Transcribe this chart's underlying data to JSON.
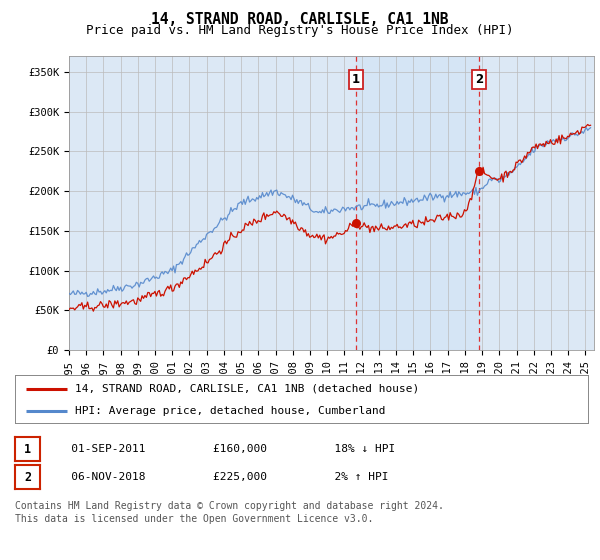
{
  "title": "14, STRAND ROAD, CARLISLE, CA1 1NB",
  "subtitle": "Price paid vs. HM Land Registry's House Price Index (HPI)",
  "ylabel_ticks": [
    "£0",
    "£50K",
    "£100K",
    "£150K",
    "£200K",
    "£250K",
    "£300K",
    "£350K"
  ],
  "ytick_values": [
    0,
    50000,
    100000,
    150000,
    200000,
    250000,
    300000,
    350000
  ],
  "ylim": [
    0,
    370000
  ],
  "xlim_start": 1995.0,
  "xlim_end": 2025.5,
  "fig_bg_color": "#ffffff",
  "plot_bg_color": "#dce8f5",
  "grid_color": "#bbbbbb",
  "hpi_color": "#5588cc",
  "price_color": "#cc1100",
  "span_color": "#d0e4f5",
  "marker1_date": 2011.67,
  "marker2_date": 2018.84,
  "marker1_price": 160000,
  "marker2_price": 225000,
  "annotation1_label": "1",
  "annotation2_label": "2",
  "legend_house_label": "14, STRAND ROAD, CARLISLE, CA1 1NB (detached house)",
  "legend_hpi_label": "HPI: Average price, detached house, Cumberland",
  "table_row1": [
    "1",
    "01-SEP-2011",
    "£160,000",
    "18% ↓ HPI"
  ],
  "table_row2": [
    "2",
    "06-NOV-2018",
    "£225,000",
    "2% ↑ HPI"
  ],
  "footnote_line1": "Contains HM Land Registry data © Crown copyright and database right 2024.",
  "footnote_line2": "This data is licensed under the Open Government Licence v3.0.",
  "title_fontsize": 10.5,
  "subtitle_fontsize": 9,
  "tick_fontsize": 7.5,
  "legend_fontsize": 8,
  "annot_fontsize": 8,
  "footnote_fontsize": 7
}
